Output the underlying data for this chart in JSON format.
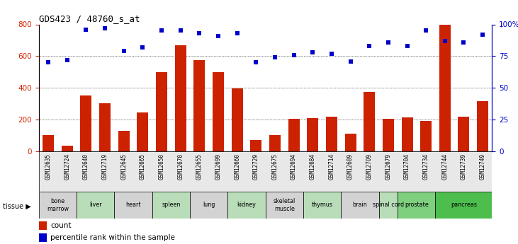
{
  "title": "GDS423 / 48760_s_at",
  "samples": [
    "GSM12635",
    "GSM12724",
    "GSM12640",
    "GSM12719",
    "GSM12645",
    "GSM12665",
    "GSM12650",
    "GSM12670",
    "GSM12655",
    "GSM12699",
    "GSM12660",
    "GSM12729",
    "GSM12675",
    "GSM12694",
    "GSM12684",
    "GSM12714",
    "GSM12689",
    "GSM12709",
    "GSM12679",
    "GSM12704",
    "GSM12734",
    "GSM12744",
    "GSM12739",
    "GSM12749"
  ],
  "counts": [
    100,
    35,
    350,
    305,
    130,
    245,
    500,
    670,
    575,
    500,
    395,
    70,
    100,
    205,
    210,
    220,
    110,
    375,
    205,
    215,
    190,
    800,
    220,
    315
  ],
  "percentiles": [
    70,
    72,
    96,
    97,
    79,
    82,
    95,
    95,
    93,
    91,
    93,
    70,
    74,
    76,
    78,
    77,
    71,
    83,
    86,
    83,
    95,
    87,
    86,
    92
  ],
  "tissues": [
    {
      "name": "bone\nmarrow",
      "start": 0,
      "end": 2,
      "color": "#d3d3d3"
    },
    {
      "name": "liver",
      "start": 2,
      "end": 4,
      "color": "#b8ddb8"
    },
    {
      "name": "heart",
      "start": 4,
      "end": 6,
      "color": "#d3d3d3"
    },
    {
      "name": "spleen",
      "start": 6,
      "end": 8,
      "color": "#b8ddb8"
    },
    {
      "name": "lung",
      "start": 8,
      "end": 10,
      "color": "#d3d3d3"
    },
    {
      "name": "kidney",
      "start": 10,
      "end": 12,
      "color": "#b8ddb8"
    },
    {
      "name": "skeletal\nmuscle",
      "start": 12,
      "end": 14,
      "color": "#d3d3d3"
    },
    {
      "name": "thymus",
      "start": 14,
      "end": 16,
      "color": "#b8ddb8"
    },
    {
      "name": "brain",
      "start": 16,
      "end": 18,
      "color": "#d3d3d3"
    },
    {
      "name": "spinal cord",
      "start": 18,
      "end": 19,
      "color": "#b8ddb8"
    },
    {
      "name": "prostate",
      "start": 19,
      "end": 21,
      "color": "#7ecf7e"
    },
    {
      "name": "pancreas",
      "start": 21,
      "end": 24,
      "color": "#4dbe4d"
    }
  ],
  "bar_color": "#cc2200",
  "dot_color": "#0000cc",
  "left_ylim": [
    0,
    800
  ],
  "right_ylim": [
    0,
    100
  ],
  "left_yticks": [
    0,
    200,
    400,
    600,
    800
  ],
  "right_yticks": [
    0,
    25,
    50,
    75,
    100
  ],
  "right_yticklabels": [
    "0",
    "25",
    "50",
    "75",
    "100%"
  ],
  "grid_values": [
    200,
    400,
    600
  ],
  "background_color": "#ffffff"
}
